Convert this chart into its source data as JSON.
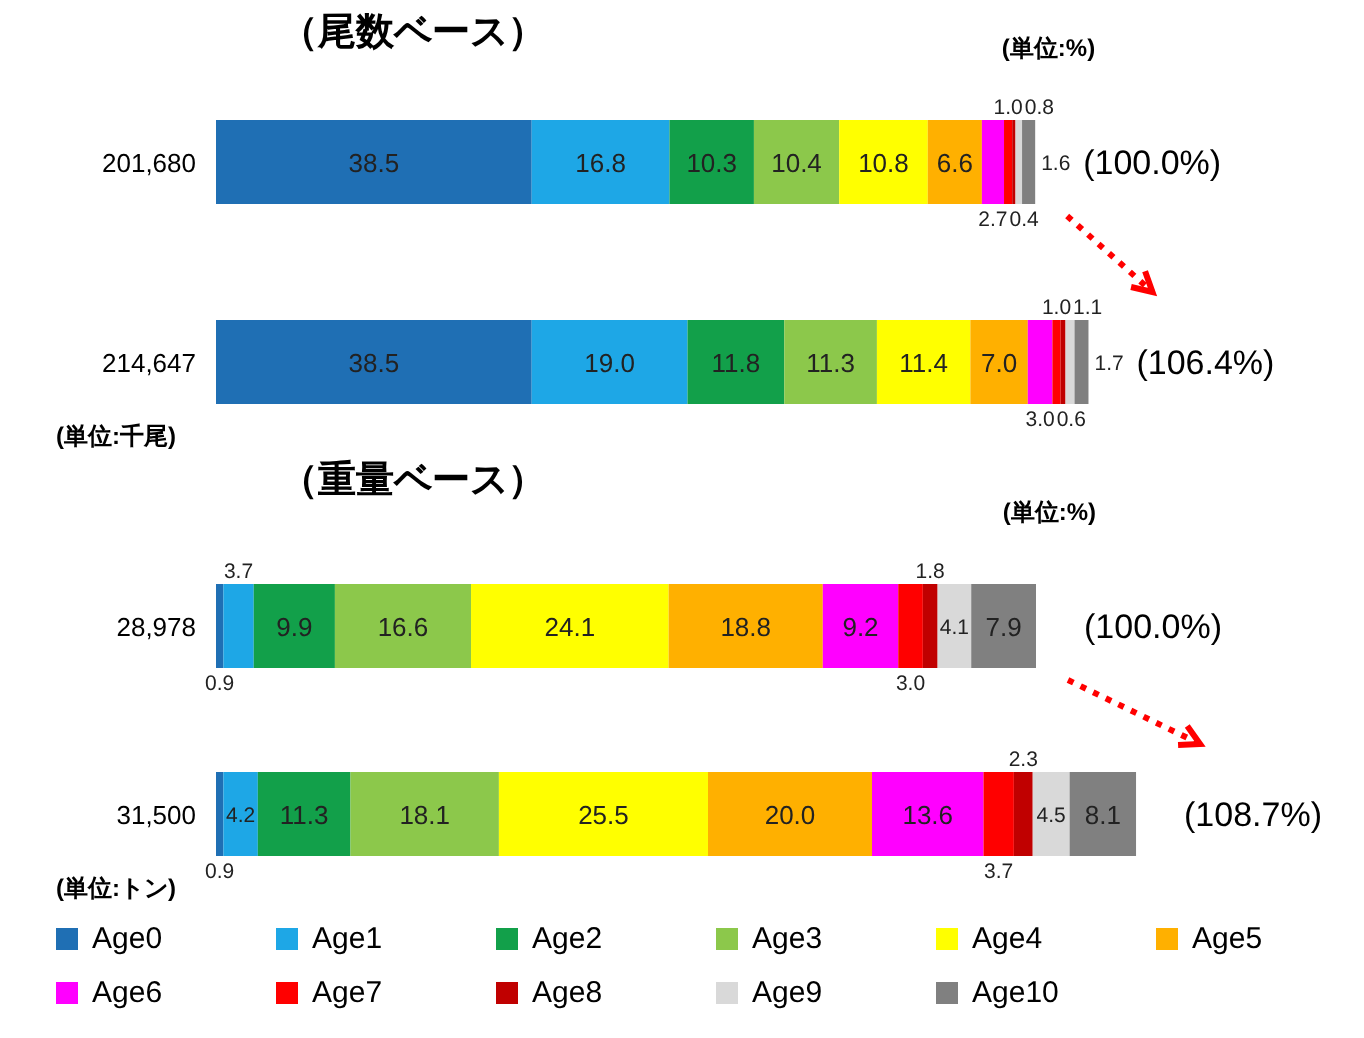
{
  "chart_data": [
    {
      "type": "bar",
      "orientation": "horizontal",
      "stacked": true,
      "title": "（尾数ベース）",
      "categories": [
        "201,680",
        "214,647"
      ],
      "annotations": [
        "(単位:%)",
        "(単位:千尾)",
        "(100.0%)",
        "(106.4%)"
      ],
      "series": [
        {
          "color": "#1f6fb4",
          "values": [
            38.5,
            38.5
          ],
          "value_labels": [
            "38.5",
            "38.5"
          ]
        },
        {
          "color": "#1ea7e6",
          "values": [
            16.8,
            19.0
          ],
          "value_labels": [
            "16.8",
            "19.0"
          ]
        },
        {
          "color": "#12a04a",
          "values": [
            10.3,
            11.8
          ],
          "value_labels": [
            "10.3",
            "11.8"
          ]
        },
        {
          "color": "#8cc84b",
          "values": [
            10.4,
            11.3
          ],
          "value_labels": [
            "10.4",
            "11.3"
          ]
        },
        {
          "color": "#ffff00",
          "values": [
            10.8,
            11.4
          ],
          "value_labels": [
            "10.8",
            "11.4"
          ]
        },
        {
          "color": "#ffb000",
          "values": [
            6.6,
            7.0
          ],
          "value_labels": [
            "6.6",
            "7.0"
          ]
        },
        {
          "color": "#ff00ff",
          "values": [
            2.7,
            3.0
          ],
          "value_labels": [
            "2.7",
            "3.0"
          ]
        },
        {
          "color": "#ff0000",
          "values": [
            1.0,
            1.0
          ],
          "value_labels": [
            "1.0",
            "1.0"
          ]
        },
        {
          "color": "#c00000",
          "values": [
            0.4,
            0.6
          ],
          "value_labels": [
            "0.4",
            "0.6"
          ]
        },
        {
          "color": "#d9d9d9",
          "values": [
            0.8,
            1.1
          ],
          "value_labels": [
            "0.8",
            "1.1"
          ]
        },
        {
          "color": "#808080",
          "values": [
            1.6,
            1.7
          ],
          "value_labels": [
            "1.6",
            "1.7"
          ]
        }
      ]
    },
    {
      "type": "bar",
      "orientation": "horizontal",
      "stacked": true,
      "legend": "bottom",
      "title": "（重量ベース）",
      "categories": [
        "28,978",
        "31,500"
      ],
      "annotations": [
        "(単位:%)",
        "(単位:トン)",
        "(100.0%)",
        "(108.7%)"
      ],
      "series": [
        {
          "name": "Age0",
          "color": "#1f6fb4",
          "values": [
            0.9,
            0.9
          ],
          "value_labels": [
            "0.9",
            "0.9"
          ]
        },
        {
          "name": "Age1",
          "color": "#1ea7e6",
          "values": [
            3.7,
            4.2
          ],
          "value_labels": [
            "3.7",
            "4.2"
          ]
        },
        {
          "name": "Age2",
          "color": "#12a04a",
          "values": [
            9.9,
            11.3
          ],
          "value_labels": [
            "9.9",
            "11.3"
          ]
        },
        {
          "name": "Age3",
          "color": "#8cc84b",
          "values": [
            16.6,
            18.1
          ],
          "value_labels": [
            "16.6",
            "18.1"
          ]
        },
        {
          "name": "Age4",
          "color": "#ffff00",
          "values": [
            24.1,
            25.5
          ],
          "value_labels": [
            "24.1",
            "25.5"
          ]
        },
        {
          "name": "Age5",
          "color": "#ffb000",
          "values": [
            18.8,
            20.0
          ],
          "value_labels": [
            "18.8",
            "20.0"
          ]
        },
        {
          "name": "Age6",
          "color": "#ff00ff",
          "values": [
            9.2,
            13.6
          ],
          "value_labels": [
            "9.2",
            "13.6"
          ]
        },
        {
          "name": "Age7",
          "color": "#ff0000",
          "values": [
            3.0,
            3.7
          ],
          "value_labels": [
            "3.0",
            "3.7"
          ]
        },
        {
          "name": "Age8",
          "color": "#c00000",
          "values": [
            1.8,
            2.3
          ],
          "value_labels": [
            "1.8",
            "2.3"
          ]
        },
        {
          "name": "Age9",
          "color": "#d9d9d9",
          "values": [
            4.1,
            4.5
          ],
          "value_labels": [
            "4.1",
            "4.5"
          ]
        },
        {
          "name": "Age10",
          "color": "#808080",
          "values": [
            7.9,
            8.1
          ],
          "value_labels": [
            "7.9",
            "8.1"
          ]
        }
      ]
    }
  ]
}
